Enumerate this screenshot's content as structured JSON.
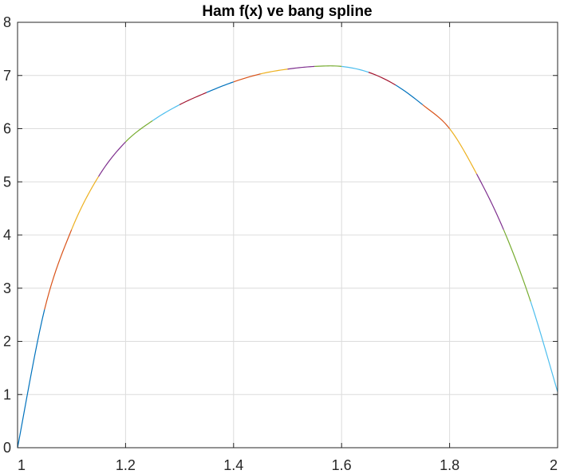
{
  "chart_data": {
    "type": "line",
    "title": "Ham f(x) ve bang spline",
    "xlabel": "",
    "ylabel": "",
    "xlim": [
      1,
      2
    ],
    "ylim": [
      0,
      8
    ],
    "grid": true,
    "x_ticks": [
      1,
      1.2,
      1.4,
      1.6,
      1.8,
      2
    ],
    "x_tick_labels": [
      "1",
      "1.2",
      "1.4",
      "1.6",
      "1.8",
      "2"
    ],
    "y_ticks": [
      0,
      1,
      2,
      3,
      4,
      5,
      6,
      7,
      8
    ],
    "y_tick_labels": [
      "0",
      "1",
      "2",
      "3",
      "4",
      "5",
      "6",
      "7",
      "8"
    ],
    "segment_colors": [
      "#0072BD",
      "#D95319",
      "#EDB120",
      "#7E2F8E",
      "#77AC30",
      "#4DBEEE",
      "#A2142F"
    ],
    "series": [
      {
        "x": [
          1.0,
          1.05,
          1.1,
          1.15,
          1.2,
          1.25,
          1.3,
          1.35,
          1.4,
          1.45,
          1.5,
          1.55,
          1.6,
          1.65,
          1.7,
          1.75,
          1.8,
          1.85,
          1.9,
          1.95,
          2.0
        ],
        "values": [
          0.0,
          2.6,
          4.1,
          5.1,
          5.75,
          6.15,
          6.45,
          6.68,
          6.88,
          7.03,
          7.12,
          7.17,
          7.17,
          7.06,
          6.82,
          6.45,
          6.0,
          5.15,
          4.1,
          2.75,
          1.05
        ]
      }
    ]
  }
}
